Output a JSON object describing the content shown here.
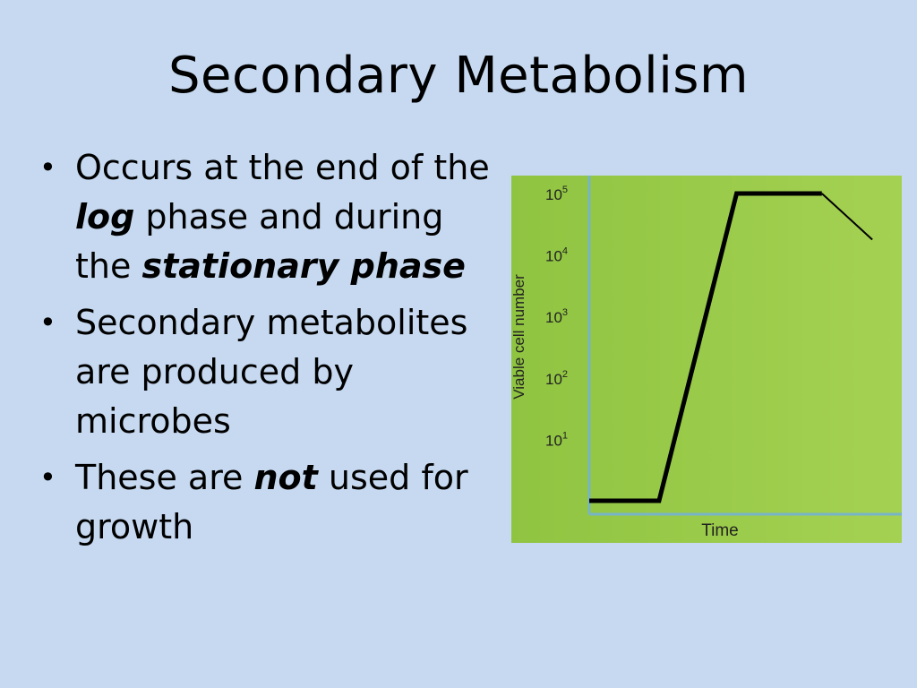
{
  "slide": {
    "title": "Secondary Metabolism",
    "bullets": [
      {
        "t1": "Occurs at the end of the ",
        "t2": "log",
        "t3": " phase and during the ",
        "t4": "stationary phase"
      },
      {
        "text": "Secondary metabolites are produced by microbes"
      },
      {
        "t1": "These are ",
        "t2": "not",
        "t3": "  used for growth"
      }
    ],
    "bullet_glyph": "•"
  },
  "chart_data": {
    "type": "line",
    "title": "",
    "xlabel": "Time",
    "ylabel": "Viable cell number",
    "y_scale": "log",
    "ylim_exponent": [
      0,
      5
    ],
    "y_ticks": [
      {
        "exp": 1,
        "base": "10",
        "sup": "1"
      },
      {
        "exp": 2,
        "base": "10",
        "sup": "2"
      },
      {
        "exp": 3,
        "base": "10",
        "sup": "3"
      },
      {
        "exp": 4,
        "base": "10",
        "sup": "4"
      },
      {
        "exp": 5,
        "base": "10",
        "sup": "5"
      }
    ],
    "xlim": [
      0,
      10
    ],
    "series": [
      {
        "x": [
          0,
          1.8,
          3.8,
          6.0,
          7.3
        ],
        "y_exponent": [
          0,
          0,
          5,
          5,
          4.25
        ],
        "style": "solid"
      }
    ],
    "colors": {
      "background_left": "#8fc441",
      "background_right": "#a5d152",
      "axis": "#78b4c8",
      "line": "#000000",
      "text": "#222222"
    }
  }
}
